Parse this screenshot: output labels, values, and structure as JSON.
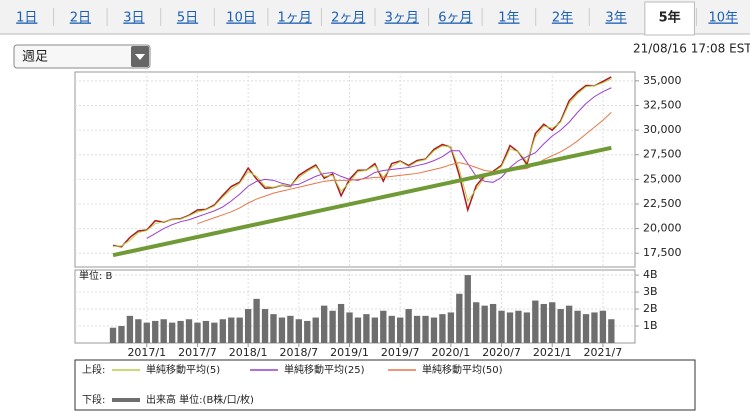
{
  "tabs": [
    "1日",
    "2日",
    "3日",
    "5日",
    "10日",
    "1ヶ月",
    "2ヶ月",
    "3ヶ月",
    "6ヶ月",
    "1年",
    "2年",
    "3年",
    "5年",
    "10年"
  ],
  "active_tab": 12,
  "dropdown": "週足",
  "timestamp": "21/08/16 17:08 EST",
  "chart_data": [
    {
      "type": "line",
      "legend_prefix": "上段:",
      "grid": true,
      "categories": [
        "2016/9",
        "2016/10",
        "2016/11",
        "2016/12",
        "2017/1",
        "2017/2",
        "2017/3",
        "2017/4",
        "2017/5",
        "2017/6",
        "2017/7",
        "2017/8",
        "2017/9",
        "2017/10",
        "2017/11",
        "2017/12",
        "2018/1",
        "2018/2",
        "2018/3",
        "2018/4",
        "2018/5",
        "2018/6",
        "2018/7",
        "2018/8",
        "2018/9",
        "2018/10",
        "2018/11",
        "2018/12",
        "2019/1",
        "2019/2",
        "2019/3",
        "2019/4",
        "2019/5",
        "2019/6",
        "2019/7",
        "2019/8",
        "2019/9",
        "2019/10",
        "2019/11",
        "2019/12",
        "2020/1",
        "2020/2",
        "2020/3",
        "2020/4",
        "2020/5",
        "2020/6",
        "2020/7",
        "2020/8",
        "2020/9",
        "2020/10",
        "2020/11",
        "2020/12",
        "2021/1",
        "2021/2",
        "2021/3",
        "2021/4",
        "2021/5",
        "2021/6",
        "2021/7",
        "2021/8"
      ],
      "ylim": [
        16100,
        35900
      ],
      "yticks": [
        {
          "value": 17500,
          "label": "17,500"
        },
        {
          "value": 20000,
          "label": "20,000"
        },
        {
          "value": 22500,
          "label": "22,500"
        },
        {
          "value": 25000,
          "label": "25,000"
        },
        {
          "value": 27500,
          "label": "27,500"
        },
        {
          "value": 30000,
          "label": "30,000"
        },
        {
          "value": 32500,
          "label": "32,500"
        },
        {
          "value": 35000,
          "label": "35,000"
        }
      ],
      "series": [
        {
          "color": "#b01818",
          "width": 1.5,
          "values": [
            18300,
            18150,
            19100,
            19760,
            19860,
            20800,
            20660,
            20940,
            21000,
            21350,
            21890,
            21950,
            22400,
            23380,
            24270,
            24720,
            26150,
            25030,
            24100,
            24160,
            24400,
            24270,
            25410,
            25960,
            26460,
            25120,
            25540,
            23330,
            25000,
            25920,
            25930,
            26590,
            24820,
            26600,
            26860,
            26400,
            26920,
            27050,
            28050,
            28540,
            28260,
            25400,
            21900,
            24350,
            25380,
            25810,
            26430,
            28430,
            27780,
            26500,
            29640,
            30600,
            29980,
            30930,
            32980,
            33870,
            34530,
            34500,
            34940,
            35400
          ]
        },
        {
          "name": "単純移動平均(5)",
          "color": "#b5cf4a",
          "width": 1,
          "values": [
            18200,
            18250,
            18800,
            19600,
            19800,
            20500,
            20700,
            20900,
            20950,
            21300,
            21700,
            21900,
            22300,
            23200,
            24000,
            24600,
            25800,
            25300,
            24300,
            24200,
            24400,
            24300,
            25200,
            25800,
            26300,
            25300,
            25400,
            23800,
            24700,
            25800,
            25900,
            26400,
            25200,
            26300,
            26800,
            26300,
            26800,
            27000,
            27900,
            28400,
            28300,
            26000,
            22800,
            24000,
            25200,
            25700,
            26300,
            28100,
            27800,
            26800,
            29300,
            30400,
            30200,
            30800,
            32700,
            33700,
            34400,
            34500,
            34800,
            35200
          ]
        },
        {
          "name": "単純移動平均(25)",
          "color": "#9a3fd0",
          "width": 1,
          "values": [
            null,
            null,
            null,
            null,
            19000,
            19500,
            20000,
            20400,
            20700,
            20900,
            21200,
            21500,
            21800,
            22200,
            22800,
            23500,
            24300,
            24800,
            25000,
            24900,
            24600,
            24400,
            24500,
            24900,
            25300,
            25600,
            25700,
            25300,
            25000,
            24900,
            25200,
            25700,
            25900,
            26000,
            26100,
            26200,
            26400,
            26600,
            26900,
            27300,
            27900,
            27900,
            26600,
            25300,
            24800,
            24700,
            25200,
            26200,
            26900,
            27300,
            27700,
            28600,
            29400,
            30000,
            30800,
            31800,
            32700,
            33400,
            33900,
            34300
          ]
        },
        {
          "name": "単純移動平均(50)",
          "color": "#e8764a",
          "width": 1,
          "values": [
            null,
            null,
            null,
            null,
            null,
            null,
            null,
            null,
            null,
            null,
            20500,
            20800,
            21100,
            21400,
            21700,
            22100,
            22600,
            23000,
            23300,
            23600,
            23800,
            24000,
            24200,
            24400,
            24600,
            24800,
            24900,
            24900,
            24900,
            25000,
            25100,
            25200,
            25200,
            25300,
            25400,
            25500,
            25600,
            25800,
            26000,
            26200,
            26500,
            26700,
            26500,
            26200,
            25900,
            25800,
            25800,
            25900,
            26000,
            26100,
            26500,
            27000,
            27400,
            27800,
            28300,
            28900,
            29600,
            30300,
            31000,
            31800
          ]
        }
      ],
      "trendline": {
        "x": [
          "2016/9",
          "2021/8"
        ],
        "values": [
          17300,
          28200
        ],
        "color": "#6f9a35"
      }
    },
    {
      "type": "bar",
      "legend_prefix": "下段:",
      "unit_label": "単位: B",
      "grid": true,
      "categories": [
        "2016/9",
        "2016/10",
        "2016/11",
        "2016/12",
        "2017/1",
        "2017/2",
        "2017/3",
        "2017/4",
        "2017/5",
        "2017/6",
        "2017/7",
        "2017/8",
        "2017/9",
        "2017/10",
        "2017/11",
        "2017/12",
        "2018/1",
        "2018/2",
        "2018/3",
        "2018/4",
        "2018/5",
        "2018/6",
        "2018/7",
        "2018/8",
        "2018/9",
        "2018/10",
        "2018/11",
        "2018/12",
        "2019/1",
        "2019/2",
        "2019/3",
        "2019/4",
        "2019/5",
        "2019/6",
        "2019/7",
        "2019/8",
        "2019/9",
        "2019/10",
        "2019/11",
        "2019/12",
        "2020/1",
        "2020/2",
        "2020/3",
        "2020/4",
        "2020/5",
        "2020/6",
        "2020/7",
        "2020/8",
        "2020/9",
        "2020/10",
        "2020/11",
        "2020/12",
        "2021/1",
        "2021/2",
        "2021/3",
        "2021/4",
        "2021/5",
        "2021/6",
        "2021/7",
        "2021/8"
      ],
      "xticks": [
        "2017/1",
        "2017/7",
        "2018/1",
        "2018/7",
        "2019/1",
        "2019/7",
        "2020/1",
        "2020/7",
        "2021/1",
        "2021/7"
      ],
      "ylim": [
        0,
        4.3
      ],
      "yticks": [
        {
          "value": 1,
          "label": "1B"
        },
        {
          "value": 2,
          "label": "2B"
        },
        {
          "value": 3,
          "label": "3B"
        },
        {
          "value": 4,
          "label": "4B"
        }
      ],
      "series": [
        {
          "name": "出来高 単位:(B株/口/枚)",
          "color": "#6e6e6e",
          "values": [
            0.9,
            1.0,
            1.6,
            1.4,
            1.2,
            1.3,
            1.4,
            1.2,
            1.3,
            1.4,
            1.2,
            1.3,
            1.2,
            1.4,
            1.5,
            1.5,
            2.0,
            2.6,
            2.0,
            1.7,
            1.5,
            1.6,
            1.4,
            1.3,
            1.5,
            2.2,
            1.9,
            2.3,
            1.8,
            1.5,
            1.7,
            1.5,
            1.9,
            1.6,
            1.5,
            2.0,
            1.6,
            1.6,
            1.5,
            1.7,
            1.8,
            2.9,
            4.0,
            2.4,
            2.2,
            2.3,
            1.9,
            1.8,
            1.9,
            1.8,
            2.5,
            2.3,
            2.4,
            2.0,
            2.2,
            1.9,
            1.7,
            1.8,
            1.9,
            1.4
          ]
        }
      ]
    }
  ]
}
